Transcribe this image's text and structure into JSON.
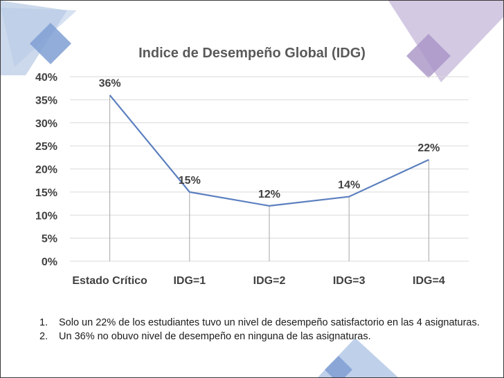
{
  "chart_data": {
    "type": "line",
    "title": "Indice de Desempeño Global (IDG)",
    "categories": [
      "Estado Crítico",
      "IDG=1",
      "IDG=2",
      "IDG=3",
      "IDG=4"
    ],
    "series": [
      {
        "name": "IDG",
        "values": [
          36,
          15,
          12,
          14,
          22
        ],
        "color": "#5b7fbf"
      }
    ],
    "data_labels": [
      "36%",
      "15%",
      "12%",
      "14%",
      "22%"
    ],
    "ylim": [
      0,
      40
    ],
    "y_ticks": [
      0,
      5,
      10,
      15,
      20,
      25,
      30,
      35,
      40
    ],
    "y_tick_labels": [
      "0%",
      "5%",
      "10%",
      "15%",
      "20%",
      "25%",
      "30%",
      "35%",
      "40%"
    ],
    "xlabel": "",
    "ylabel": "",
    "gridlines": true,
    "drop_lines": true
  },
  "notes": [
    {
      "number": "1.",
      "text": "Solo un 22% de los estudiantes tuvo un nivel de desempeño satisfactorio en las 4 asignaturas."
    },
    {
      "number": "2.",
      "text": "Un 36% no obuvo nivel de desempeño en ninguna de las asignaturas."
    }
  ],
  "colors": {
    "line": "#5b7fbf",
    "grid": "#d9d9d9",
    "deco_blue": "#a8bfe0",
    "deco_blue_dark": "#7f9fd3",
    "deco_purple": "#c2b4d8",
    "deco_purple_dark": "#a794c6"
  }
}
